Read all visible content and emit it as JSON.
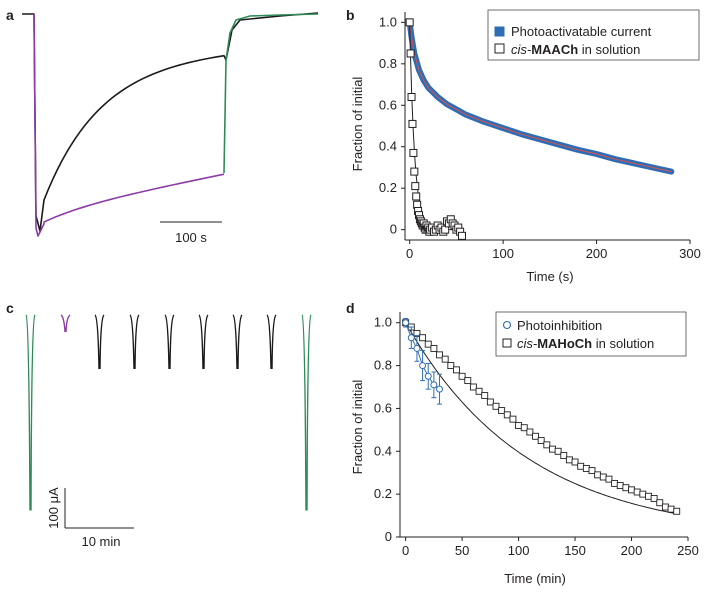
{
  "panel_labels": {
    "a": "a",
    "b": "b",
    "c": "c",
    "d": "d"
  },
  "panel_a": {
    "scale_bar_label": "100 s",
    "colors": {
      "trace_black": "#1a1a1a",
      "trace_purple": "#8b3ca8",
      "trace_green": "#2e8b57"
    }
  },
  "panel_c": {
    "scale_bar_y_label": "100 μA",
    "scale_bar_x_label": "10 min",
    "colors": {
      "trace_black": "#1a1a1a",
      "trace_purple": "#8b3ca8",
      "trace_green": "#2e8b57"
    },
    "pulse_amplitudes": [
      0.95,
      0.08,
      0.26,
      0.26,
      0.26,
      0.26,
      0.26,
      0.26,
      0.95
    ]
  },
  "chart_data": [
    {
      "id": "b",
      "type": "scatter",
      "xlabel": "Time (s)",
      "ylabel": "Fraction of initial",
      "xlim": [
        -5,
        300
      ],
      "ylim": [
        -0.05,
        1.05
      ],
      "xticks": [
        "0",
        "100",
        "200",
        "300"
      ],
      "yticks": [
        "0",
        "0.2",
        "0.4",
        "0.6",
        "0.8",
        "1.0"
      ],
      "legend": {
        "position": "top-right"
      },
      "colors": {
        "photo": "#2e6db4",
        "fit": "#d9534f",
        "cis": "#231f20"
      },
      "series": [
        {
          "name": "Photoactivatable current",
          "name_prefix": "",
          "name_bold": "",
          "name_suffix": "Photoactivatable current",
          "marker": "filled-square",
          "x": [
            0,
            2,
            5,
            10,
            15,
            20,
            30,
            40,
            50,
            60,
            80,
            100,
            120,
            140,
            160,
            180,
            200,
            220,
            240,
            260,
            280
          ],
          "y": [
            1.0,
            0.93,
            0.85,
            0.77,
            0.72,
            0.685,
            0.64,
            0.605,
            0.58,
            0.555,
            0.52,
            0.49,
            0.46,
            0.435,
            0.41,
            0.385,
            0.365,
            0.34,
            0.32,
            0.3,
            0.28
          ]
        },
        {
          "name": "cis-MAACh in solution",
          "name_prefix": "cis-",
          "name_bold": "MAACh",
          "name_suffix": " in solution",
          "marker": "open-square",
          "x": [
            0,
            1,
            2,
            3,
            4,
            5,
            6,
            7,
            8,
            9,
            10,
            11,
            12,
            13,
            14,
            15,
            16,
            17,
            18,
            19,
            20,
            21,
            22,
            24,
            26,
            28,
            30,
            32,
            34,
            36,
            38,
            40,
            42,
            44,
            46,
            48,
            50,
            52,
            54,
            56
          ],
          "y": [
            1.0,
            0.85,
            0.64,
            0.51,
            0.37,
            0.28,
            0.21,
            0.16,
            0.12,
            0.09,
            0.07,
            0.05,
            0.04,
            0.03,
            0.02,
            0.03,
            0.01,
            0.0,
            0.02,
            0.0,
            0.01,
            -0.01,
            0.0,
            0.01,
            -0.01,
            0.0,
            0.02,
            0.0,
            0.01,
            -0.01,
            0.0,
            0.04,
            0.03,
            0.05,
            0.03,
            0.02,
            0.0,
            0.01,
            -0.01,
            -0.03
          ]
        }
      ]
    },
    {
      "id": "d",
      "type": "scatter",
      "xlabel": "Time (min)",
      "ylabel": "Fraction of initial",
      "xlim": [
        -5,
        250
      ],
      "ylim": [
        0,
        1.05
      ],
      "xticks": [
        "0",
        "50",
        "100",
        "150",
        "200",
        "250"
      ],
      "yticks": [
        "0",
        "0.2",
        "0.4",
        "0.6",
        "0.8",
        "1.0"
      ],
      "legend": {
        "position": "top-right"
      },
      "colors": {
        "photo": "#2e6db4",
        "cis": "#231f20"
      },
      "series": [
        {
          "name": "Photoinhibition",
          "name_prefix": "",
          "name_bold": "",
          "name_suffix": "Photoinhibition",
          "marker": "open-circle",
          "x": [
            0,
            5,
            10,
            15,
            20,
            25,
            30
          ],
          "y": [
            1.0,
            0.93,
            0.88,
            0.8,
            0.75,
            0.71,
            0.69
          ],
          "err": [
            0.02,
            0.05,
            0.06,
            0.07,
            0.06,
            0.06,
            0.07
          ]
        },
        {
          "name": "cis-MAHoCh in solution",
          "name_prefix": "cis-",
          "name_bold": "MAHoCh",
          "name_suffix": " in solution",
          "marker": "open-square",
          "x": [
            0,
            5,
            10,
            15,
            20,
            25,
            30,
            35,
            40,
            45,
            50,
            55,
            60,
            65,
            70,
            75,
            80,
            85,
            90,
            95,
            100,
            105,
            110,
            115,
            120,
            125,
            130,
            135,
            140,
            145,
            150,
            155,
            160,
            165,
            170,
            175,
            180,
            185,
            190,
            195,
            200,
            205,
            210,
            215,
            220,
            225,
            230,
            235,
            240
          ],
          "y": [
            1.0,
            0.98,
            0.95,
            0.93,
            0.9,
            0.88,
            0.85,
            0.83,
            0.8,
            0.78,
            0.75,
            0.73,
            0.7,
            0.68,
            0.66,
            0.63,
            0.61,
            0.59,
            0.57,
            0.55,
            0.52,
            0.51,
            0.49,
            0.47,
            0.45,
            0.43,
            0.41,
            0.4,
            0.38,
            0.36,
            0.35,
            0.33,
            0.32,
            0.31,
            0.29,
            0.28,
            0.27,
            0.25,
            0.24,
            0.23,
            0.22,
            0.21,
            0.2,
            0.19,
            0.18,
            0.16,
            0.14,
            0.13,
            0.12
          ]
        }
      ]
    }
  ]
}
